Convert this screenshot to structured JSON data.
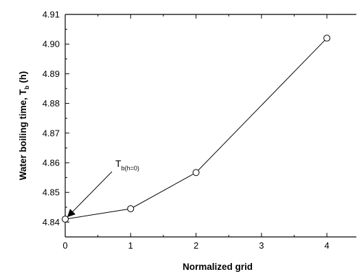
{
  "chart_data": {
    "type": "line",
    "xlabel": "Normalized grid",
    "ylabel_main": "Water boiling time, T",
    "ylabel_sub": "b",
    "ylabel_suffix": " (h)",
    "xlim": [
      0,
      4.45
    ],
    "ylim": [
      4.835,
      4.91
    ],
    "xticks": [
      0,
      1,
      2,
      3,
      4
    ],
    "xtick_labels": [
      "0",
      "1",
      "2",
      "3",
      "4"
    ],
    "yticks": [
      4.84,
      4.85,
      4.86,
      4.87,
      4.88,
      4.89,
      4.9,
      4.91
    ],
    "ytick_labels": [
      "4.84",
      "4.85",
      "4.86",
      "4.87",
      "4.88",
      "4.89",
      "4.90",
      "4.91"
    ],
    "grid": false,
    "series": [
      {
        "x": [
          0,
          1,
          2,
          4
        ],
        "y": [
          4.841,
          4.8445,
          4.8567,
          4.902
        ],
        "marker": "open-circle",
        "color": "#000000"
      }
    ],
    "annotation": {
      "main": "T",
      "sub": "b(h=0)",
      "target_x": 0,
      "target_y": 4.841
    }
  }
}
